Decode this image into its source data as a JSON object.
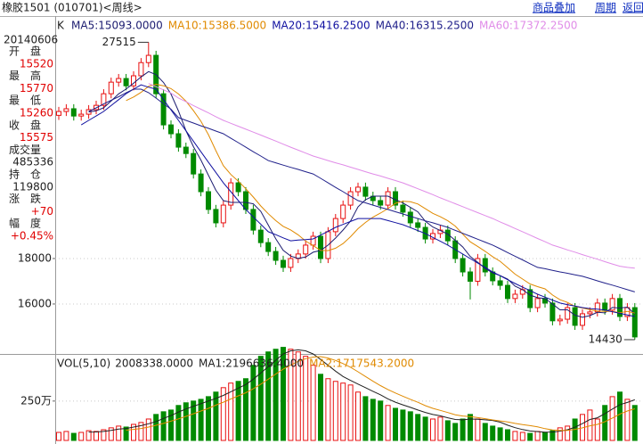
{
  "toolbar": {
    "title": "橡胶1501 (010701)<周线>",
    "links": [
      "商品叠加",
      "周期",
      "返回"
    ]
  },
  "info_panel": {
    "date": "20140606",
    "rows": [
      {
        "label": "开　盘",
        "value": "15520",
        "color": "#e00000"
      },
      {
        "label": "最　高",
        "value": "15770",
        "color": "#e00000"
      },
      {
        "label": "最　低",
        "value": "15260",
        "color": "#e00000"
      },
      {
        "label": "收　盘",
        "value": "15575",
        "color": "#e00000"
      },
      {
        "label": "成交量",
        "value": "485336",
        "color": "#202020"
      },
      {
        "label": "持　仓",
        "value": "119800",
        "color": "#202020"
      },
      {
        "label": "涨　跌",
        "value": "+70",
        "color": "#e00000"
      },
      {
        "label": "幅　度",
        "value": "+0.45%",
        "color": "#e00000"
      }
    ]
  },
  "chart_data": {
    "type": "candlestick",
    "panel_label": "K",
    "ylim": [
      13880,
      28590
    ],
    "yticks": [
      16000,
      18000
    ],
    "grid": true,
    "up_color": "#e81010",
    "down_color": "#008a00",
    "open": [
      24300,
      24470,
      24590,
      24270,
      24350,
      24550,
      24740,
      25250,
      25760,
      25920,
      25600,
      26040,
      26620,
      26940,
      25250,
      23880,
      23490,
      22900,
      22620,
      21720,
      20940,
      20160,
      19570,
      20350,
      21330,
      20940,
      20160,
      19250,
      18700,
      18310,
      17920,
      17610,
      18000,
      18200,
      18590,
      18980,
      18000,
      19180,
      19760,
      20350,
      20940,
      21140,
      20740,
      20550,
      20350,
      20940,
      20350,
      20040,
      19570,
      19370,
      18860,
      19100,
      19250,
      18780,
      18000,
      17410,
      17000,
      18000,
      17410,
      17020,
      16820,
      16240,
      16430,
      16630,
      15840,
      16240,
      16040,
      15260,
      15330,
      15840,
      15060,
      15570,
      15650,
      16040,
      15730,
      16240,
      15450,
      15840
    ],
    "high": [
      24670,
      24790,
      24790,
      24550,
      24750,
      24940,
      25450,
      25960,
      26120,
      26120,
      26240,
      26820,
      27515,
      27140,
      25450,
      24080,
      23690,
      23100,
      22820,
      21920,
      21140,
      20360,
      20550,
      21530,
      21530,
      21140,
      20360,
      19450,
      18900,
      18510,
      18120,
      18200,
      18400,
      18790,
      19180,
      19180,
      19380,
      19960,
      20550,
      21140,
      21340,
      21340,
      20940,
      20750,
      21140,
      21140,
      20550,
      20240,
      19770,
      19570,
      19300,
      19450,
      19450,
      18980,
      18200,
      17610,
      18200,
      18200,
      17610,
      17220,
      17020,
      16630,
      16830,
      16830,
      16440,
      16440,
      16240,
      15530,
      16040,
      16040,
      15770,
      15850,
      16240,
      16240,
      16440,
      16440,
      16040,
      16040
    ],
    "low": [
      24100,
      24270,
      24070,
      24070,
      24150,
      24350,
      24540,
      25050,
      25560,
      25400,
      25400,
      25840,
      26420,
      25050,
      23680,
      23290,
      22700,
      22420,
      21520,
      20740,
      19960,
      19370,
      19370,
      20150,
      20740,
      19960,
      19050,
      18500,
      18110,
      17720,
      17410,
      17410,
      17800,
      18000,
      18390,
      17800,
      17800,
      18980,
      19560,
      20150,
      20740,
      20540,
      20350,
      20150,
      20150,
      20150,
      19840,
      19370,
      19170,
      18660,
      18660,
      18900,
      18580,
      17800,
      17210,
      16200,
      16800,
      17210,
      16820,
      16620,
      16040,
      16040,
      16230,
      15640,
      15640,
      15840,
      15060,
      15060,
      15130,
      14860,
      14860,
      15370,
      15450,
      15530,
      15530,
      15250,
      15250,
      14430
    ],
    "close": [
      24470,
      24590,
      24270,
      24350,
      24550,
      24740,
      25250,
      25760,
      25920,
      25600,
      26040,
      26620,
      26940,
      25250,
      23880,
      23490,
      22900,
      22620,
      21720,
      20940,
      20160,
      19570,
      20350,
      21330,
      20940,
      20160,
      19250,
      18700,
      18310,
      17920,
      17610,
      18000,
      18200,
      18590,
      18980,
      18000,
      19180,
      19760,
      20350,
      20940,
      21140,
      20740,
      20550,
      20350,
      20940,
      20350,
      20040,
      19570,
      19370,
      18860,
      19100,
      19250,
      18780,
      18000,
      17410,
      17000,
      18000,
      17410,
      17020,
      16820,
      16240,
      16430,
      16630,
      15840,
      16240,
      16040,
      15260,
      15330,
      15840,
      15060,
      15570,
      15650,
      16040,
      15730,
      16240,
      15450,
      15840,
      14550
    ],
    "series": [
      {
        "name": "MA5:15093.0000",
        "color": "#1c1c70",
        "values": [
          null,
          null,
          null,
          null,
          24446,
          24500,
          24632,
          24930,
          25244,
          25454,
          25714,
          25988,
          26224,
          26090,
          25746,
          25236,
          24492,
          23628,
          22922,
          22334,
          21668,
          21002,
          20548,
          20470,
          20470,
          20470,
          20406,
          20076,
          19472,
          18868,
          18358,
          18108,
          18008,
          18064,
          18276,
          18354,
          18590,
          18902,
          19254,
          19646,
          20274,
          20586,
          20744,
          20744,
          20744,
          20586,
          20446,
          20250,
          20054,
          19638,
          19388,
          19230,
          19072,
          18798,
          18508,
          18088,
          17838,
          17564,
          17368,
          17250,
          17098,
          16784,
          16628,
          16392,
          16276,
          16236,
          16002,
          15742,
          15742,
          15506,
          15412,
          15490,
          15632,
          15610,
          15846,
          15822,
          15860,
          15562
        ]
      },
      {
        "name": "MA10:15386.5000",
        "color": "#e08a00",
        "values": [
          null,
          null,
          null,
          null,
          null,
          null,
          null,
          null,
          null,
          24950,
          25107,
          25310,
          25577,
          25667,
          25600,
          25475,
          25240,
          24926,
          24506,
          24040,
          23452,
          22747,
          22088,
          21696,
          21402,
          21069,
          20704,
          20312,
          19971,
          19669,
          19414,
          19257,
          19042,
          18768,
          18572,
          18356,
          18349,
          18455,
          18659,
          18961,
          19314,
          19588,
          19823,
          19999,
          20195,
          20430,
          20516,
          20497,
          20399,
          20191,
          19987,
          19838,
          19661,
          19426,
          19073,
          18738,
          18534,
          18318,
          18083,
          17879,
          17593,
          17311,
          17096,
          16880,
          16763,
          16667,
          16393,
          16185,
          16067,
          15891,
          15824,
          15746,
          15687,
          15676,
          15676,
          15617,
          15675,
          15597
        ]
      },
      {
        "name": "MA20:15416.2500",
        "color": "#1010a0",
        "values": [
          null,
          null,
          null,
          23880,
          24080,
          24270,
          24470,
          24730,
          24990,
          25250,
          25450,
          25640,
          25540,
          25450,
          24990,
          24540,
          24080,
          23620,
          23160,
          22700,
          22240,
          21790,
          21330,
          20940,
          20550,
          20160,
          19830,
          19510,
          19180,
          19050,
          18910,
          18780,
          18810,
          18830,
          18860,
          19030,
          19200,
          19370,
          19500,
          19630,
          19760,
          19760,
          19760,
          19760,
          19670,
          19580,
          19490,
          19360,
          19230,
          19100,
          18930,
          18760,
          18590,
          18390,
          18200,
          18000,
          17800,
          17610,
          17410,
          17240,
          17070,
          16900,
          16740,
          16590,
          16430,
          16300,
          16170,
          16040,
          15970,
          15910,
          15840,
          15800,
          15770,
          15730,
          15660,
          15590,
          15520,
          15450
        ]
      },
      {
        "name": "MA40:16315.2500",
        "color": "#20208a",
        "values": [
          null,
          null,
          null,
          null,
          24470,
          24630,
          24800,
          24960,
          25120,
          25290,
          25450,
          25450,
          25300,
          25060,
          24810,
          24570,
          24200,
          24080,
          23960,
          23840,
          23730,
          23610,
          23490,
          23290,
          23100,
          22900,
          22700,
          22510,
          22310,
          22210,
          22110,
          22010,
          21920,
          21820,
          21720,
          21530,
          21330,
          21130,
          20940,
          20740,
          20550,
          20450,
          20350,
          20250,
          20160,
          20060,
          19960,
          19860,
          19760,
          19660,
          19570,
          19470,
          19370,
          19240,
          19110,
          18980,
          18850,
          18720,
          18590,
          18430,
          18260,
          18100,
          17940,
          17770,
          17610,
          17550,
          17480,
          17410,
          17350,
          17280,
          17220,
          17120,
          17020,
          16920,
          16830,
          16730,
          16630,
          16530
        ]
      },
      {
        "name": "MA60:17372.2500",
        "color": "#e08ce8",
        "values": [
          null,
          null,
          null,
          null,
          null,
          null,
          null,
          null,
          null,
          null,
          null,
          null,
          25700,
          25560,
          25420,
          25280,
          25060,
          24900,
          24730,
          24570,
          24410,
          24240,
          24080,
          23950,
          23820,
          23690,
          23560,
          23430,
          23300,
          23170,
          23030,
          22900,
          22770,
          22640,
          22510,
          22410,
          22310,
          22210,
          22120,
          22020,
          21920,
          21820,
          21720,
          21630,
          21530,
          21430,
          21330,
          21200,
          21070,
          20940,
          20810,
          20670,
          20540,
          20410,
          20280,
          20150,
          20020,
          19890,
          19760,
          19610,
          19470,
          19320,
          19180,
          19030,
          18880,
          18740,
          18590,
          18490,
          18380,
          18280,
          18170,
          18070,
          17970,
          17860,
          17760,
          17660,
          17610,
          17580
        ]
      }
    ],
    "volume": {
      "title": "VOL(5,10)",
      "value_text": "2008338.0000",
      "ylim": [
        0,
        600
      ],
      "yticks": [
        {
          "value": 250,
          "label": "250万"
        }
      ],
      "values": [
        51,
        57,
        45,
        51,
        62,
        57,
        68,
        80,
        91,
        85,
        102,
        114,
        136,
        165,
        182,
        193,
        222,
        239,
        250,
        261,
        278,
        307,
        335,
        364,
        375,
        392,
        477,
        534,
        562,
        579,
        591,
        579,
        562,
        534,
        477,
        420,
        392,
        375,
        364,
        352,
        307,
        278,
        261,
        250,
        222,
        204,
        193,
        182,
        165,
        148,
        136,
        148,
        125,
        108,
        136,
        165,
        136,
        108,
        91,
        80,
        68,
        57,
        51,
        45,
        57,
        51,
        62,
        80,
        91,
        136,
        165,
        193,
        136,
        222,
        278,
        307,
        261,
        222
      ],
      "series": [
        {
          "name": "MA1:2196636.4000",
          "color": "#202020",
          "values": [
            null,
            null,
            null,
            null,
            53,
            54,
            57,
            64,
            72,
            76,
            85,
            94,
            106,
            120,
            140,
            158,
            180,
            200,
            217,
            233,
            250,
            267,
            286,
            309,
            332,
            355,
            389,
            428,
            468,
            509,
            549,
            569,
            575,
            569,
            549,
            514,
            477,
            440,
            406,
            381,
            358,
            335,
            312,
            290,
            264,
            243,
            226,
            210,
            193,
            178,
            165,
            156,
            144,
            133,
            131,
            136,
            134,
            131,
            127,
            116,
            97,
            81,
            69,
            60,
            56,
            52,
            53,
            59,
            68,
            84,
            107,
            133,
            144,
            170,
            199,
            227,
            241,
            258
          ]
        },
        {
          "name": "MA2:1717543.2000",
          "color": "#e08a00",
          "values": [
            null,
            null,
            null,
            null,
            null,
            null,
            null,
            null,
            null,
            65,
            70,
            76,
            85,
            96,
            108,
            122,
            137,
            153,
            169,
            187,
            204,
            224,
            243,
            263,
            283,
            303,
            328,
            357,
            389,
            421,
            452,
            479,
            502,
            519,
            529,
            532,
            523,
            508,
            488,
            465,
            436,
            406,
            376,
            348,
            323,
            301,
            281,
            261,
            242,
            221,
            204,
            191,
            177,
            163,
            155,
            151,
            145,
            138,
            130,
            124,
            117,
            108,
            100,
            94,
            86,
            75,
            67,
            64,
            64,
            70,
            80,
            93,
            102,
            119,
            142,
            167,
            187,
            201
          ]
        }
      ]
    }
  }
}
